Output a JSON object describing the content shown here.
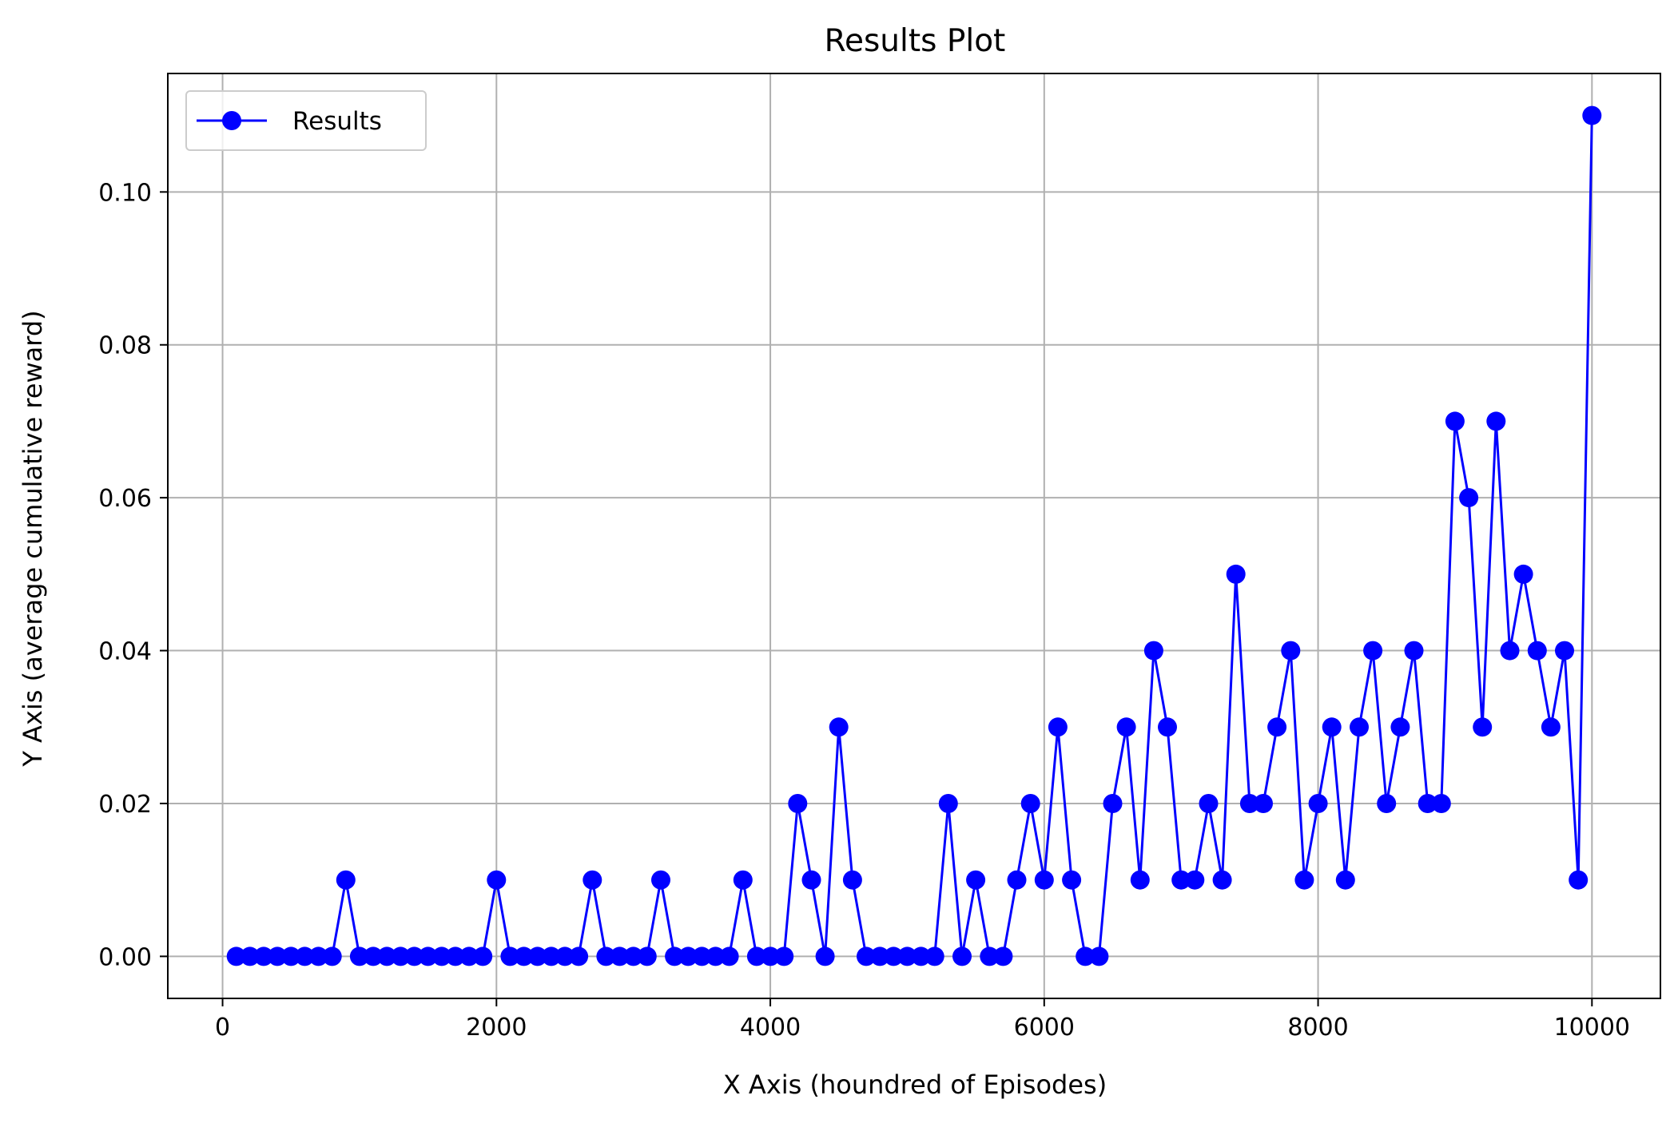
{
  "chart_data": {
    "type": "line",
    "title": "Results Plot",
    "xlabel": "X Axis (houndred of Episodes)",
    "ylabel": "Y Axis (average cumulative reward)",
    "xlim": [
      -400,
      10500
    ],
    "ylim": [
      -0.0055,
      0.1155
    ],
    "xticks": [
      0,
      2000,
      4000,
      6000,
      8000,
      10000
    ],
    "xtick_labels": [
      "0",
      "2000",
      "4000",
      "6000",
      "8000",
      "10000"
    ],
    "yticks": [
      0.0,
      0.02,
      0.04,
      0.06,
      0.08,
      0.1
    ],
    "ytick_labels": [
      "0.00",
      "0.02",
      "0.04",
      "0.06",
      "0.08",
      "0.10"
    ],
    "grid": true,
    "legend_position": "top-left",
    "series": [
      {
        "name": "Results",
        "color": "#0000ff",
        "marker": "circle",
        "x": [
          100,
          200,
          300,
          400,
          500,
          600,
          700,
          800,
          900,
          1000,
          1100,
          1200,
          1300,
          1400,
          1500,
          1600,
          1700,
          1800,
          1900,
          2000,
          2100,
          2200,
          2300,
          2400,
          2500,
          2600,
          2700,
          2800,
          2900,
          3000,
          3100,
          3200,
          3300,
          3400,
          3500,
          3600,
          3700,
          3800,
          3900,
          4000,
          4100,
          4200,
          4300,
          4400,
          4500,
          4600,
          4700,
          4800,
          4900,
          5000,
          5100,
          5200,
          5300,
          5400,
          5500,
          5600,
          5700,
          5800,
          5900,
          6000,
          6100,
          6200,
          6300,
          6400,
          6500,
          6600,
          6700,
          6800,
          6900,
          7000,
          7100,
          7200,
          7300,
          7400,
          7500,
          7600,
          7700,
          7800,
          7900,
          8000,
          8100,
          8200,
          8300,
          8400,
          8500,
          8600,
          8700,
          8800,
          8900,
          9000,
          9100,
          9200,
          9300,
          9400,
          9500,
          9600,
          9700,
          9800,
          9900,
          10000
        ],
        "y": [
          0,
          0,
          0,
          0,
          0,
          0,
          0,
          0,
          0.01,
          0,
          0,
          0,
          0,
          0,
          0,
          0,
          0,
          0,
          0,
          0.01,
          0,
          0,
          0,
          0,
          0,
          0,
          0.01,
          0,
          0,
          0,
          0,
          0.01,
          0,
          0,
          0,
          0,
          0,
          0.01,
          0,
          0,
          0,
          0.02,
          0.01,
          0,
          0.03,
          0.01,
          0,
          0,
          0,
          0,
          0,
          0,
          0.02,
          0,
          0.01,
          0,
          0,
          0.01,
          0.02,
          0.01,
          0.03,
          0.01,
          0,
          0,
          0.02,
          0.03,
          0.01,
          0.04,
          0.03,
          0.01,
          0.01,
          0.02,
          0.01,
          0.05,
          0.02,
          0.02,
          0.03,
          0.04,
          0.01,
          0.02,
          0.03,
          0.01,
          0.03,
          0.04,
          0.02,
          0.03,
          0.04,
          0.02,
          0.02,
          0.07,
          0.06,
          0.03,
          0.07,
          0.04,
          0.05,
          0.04,
          0.03,
          0.04,
          0.01,
          0.11
        ]
      }
    ]
  }
}
